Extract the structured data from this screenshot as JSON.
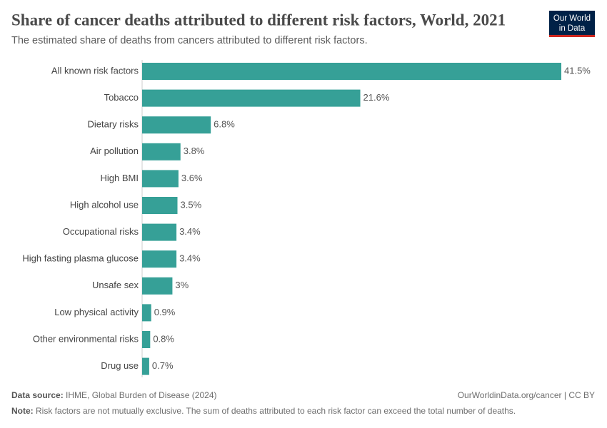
{
  "chart_data": {
    "type": "bar",
    "orientation": "horizontal",
    "title": "Share of cancer deaths attributed to different risk factors, World, 2021",
    "subtitle": "The estimated share of deaths from cancers attributed to different risk factors.",
    "categories": [
      "All known risk factors",
      "Tobacco",
      "Dietary risks",
      "Air pollution",
      "High BMI",
      "High alcohol use",
      "Occupational risks",
      "High fasting plasma glucose",
      "Unsafe sex",
      "Low physical activity",
      "Other environmental risks",
      "Drug use"
    ],
    "values": [
      41.5,
      21.6,
      6.8,
      3.8,
      3.6,
      3.5,
      3.4,
      3.4,
      3,
      0.9,
      0.8,
      0.7
    ],
    "value_labels": [
      "41.5%",
      "21.6%",
      "6.8%",
      "3.8%",
      "3.6%",
      "3.5%",
      "3.4%",
      "3.4%",
      "3%",
      "0.9%",
      "0.8%",
      "0.7%"
    ],
    "color": "#36a097"
  },
  "logo": [
    "Our World",
    "in Data"
  ],
  "footer": {
    "source_label": "Data source:",
    "source": "IHME, Global Burden of Disease (2024)",
    "link": "OurWorldinData.org/cancer | CC BY",
    "note_label": "Note:",
    "note": "Risk factors are not mutually exclusive. The sum of deaths attributed to each risk factor can exceed the total number of deaths."
  }
}
